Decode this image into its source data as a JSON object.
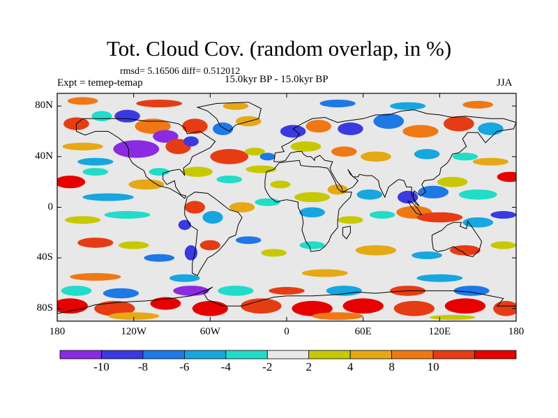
{
  "title": "Tot. Cloud Cov. (random overlap, in %)",
  "stats": "rmsd= 5.16506 diff= 0.512012",
  "experiment": "Expt = temep-temap",
  "period": "15.0kyr BP - 15.0kyr BP",
  "season": "JJA",
  "map": {
    "lon_range": [
      -180,
      180
    ],
    "lat_range": [
      -90,
      90
    ],
    "projection": "cylindrical-equidistant",
    "x_ticks": [
      {
        "lon": -180,
        "label": "180"
      },
      {
        "lon": -120,
        "label": "120W"
      },
      {
        "lon": -60,
        "label": "60W"
      },
      {
        "lon": 0,
        "label": "0"
      },
      {
        "lon": 60,
        "label": "60E"
      },
      {
        "lon": 120,
        "label": "120E"
      },
      {
        "lon": 180,
        "label": "180"
      }
    ],
    "y_ticks": [
      {
        "lat": 80,
        "label": "80N"
      },
      {
        "lat": 40,
        "label": "40N"
      },
      {
        "lat": 0,
        "label": "0"
      },
      {
        "lat": -40,
        "label": "40S"
      },
      {
        "lat": -80,
        "label": "80S"
      }
    ]
  },
  "colorbar": {
    "colors": [
      "#8a2be2",
      "#3a3ae0",
      "#1e78e6",
      "#16a6e0",
      "#20dcc8",
      "#e8e8e8",
      "#c8c800",
      "#e6a814",
      "#f07814",
      "#e63c14",
      "#e60000"
    ],
    "levels": [
      {
        "value": -10,
        "label": "-10"
      },
      {
        "value": -8,
        "label": "-8"
      },
      {
        "value": -6,
        "label": "-6"
      },
      {
        "value": -4,
        "label": "-4"
      },
      {
        "value": -2,
        "label": "-2"
      },
      {
        "value": 2,
        "label": "2"
      },
      {
        "value": 4,
        "label": "4"
      },
      {
        "value": 8,
        "label": "8"
      },
      {
        "value": 10,
        "label": "10"
      }
    ]
  },
  "anomaly_regions": [
    {
      "lon": -160,
      "lat": 84,
      "rx": 12,
      "ry": 3,
      "cls": 8
    },
    {
      "lon": -100,
      "lat": 82,
      "rx": 18,
      "ry": 3,
      "cls": 9
    },
    {
      "lon": -40,
      "lat": 80,
      "rx": 10,
      "ry": 3,
      "cls": 7
    },
    {
      "lon": 40,
      "lat": 82,
      "rx": 14,
      "ry": 3,
      "cls": 2
    },
    {
      "lon": 95,
      "lat": 80,
      "rx": 14,
      "ry": 3,
      "cls": 3
    },
    {
      "lon": 150,
      "lat": 81,
      "rx": 12,
      "ry": 3,
      "cls": 8
    },
    {
      "lon": -165,
      "lat": 66,
      "rx": 10,
      "ry": 5,
      "cls": 9
    },
    {
      "lon": -145,
      "lat": 72,
      "rx": 8,
      "ry": 4,
      "cls": 4
    },
    {
      "lon": -125,
      "lat": 72,
      "rx": 10,
      "ry": 5,
      "cls": 1
    },
    {
      "lon": -105,
      "lat": 64,
      "rx": 14,
      "ry": 6,
      "cls": 8
    },
    {
      "lon": -95,
      "lat": 56,
      "rx": 10,
      "ry": 5,
      "cls": 0
    },
    {
      "lon": -72,
      "lat": 64,
      "rx": 10,
      "ry": 6,
      "cls": 9
    },
    {
      "lon": -50,
      "lat": 62,
      "rx": 8,
      "ry": 5,
      "cls": 2
    },
    {
      "lon": -30,
      "lat": 68,
      "rx": 10,
      "ry": 4,
      "cls": 7
    },
    {
      "lon": -118,
      "lat": 46,
      "rx": 18,
      "ry": 7,
      "cls": 0
    },
    {
      "lon": -85,
      "lat": 48,
      "rx": 10,
      "ry": 6,
      "cls": 9
    },
    {
      "lon": -75,
      "lat": 52,
      "rx": 6,
      "ry": 4,
      "cls": 1
    },
    {
      "lon": -45,
      "lat": 40,
      "rx": 15,
      "ry": 6,
      "cls": 9
    },
    {
      "lon": -25,
      "lat": 44,
      "rx": 8,
      "ry": 3,
      "cls": 6
    },
    {
      "lon": -160,
      "lat": 48,
      "rx": 16,
      "ry": 3,
      "cls": 7
    },
    {
      "lon": -150,
      "lat": 36,
      "rx": 14,
      "ry": 3,
      "cls": 3
    },
    {
      "lon": -170,
      "lat": 20,
      "rx": 12,
      "ry": 5,
      "cls": 10
    },
    {
      "lon": -150,
      "lat": 28,
      "rx": 10,
      "ry": 3,
      "cls": 4
    },
    {
      "lon": -140,
      "lat": 8,
      "rx": 20,
      "ry": 3,
      "cls": 3
    },
    {
      "lon": -110,
      "lat": 18,
      "rx": 14,
      "ry": 4,
      "cls": 7
    },
    {
      "lon": -100,
      "lat": 28,
      "rx": 8,
      "ry": 3,
      "cls": 4
    },
    {
      "lon": -70,
      "lat": 28,
      "rx": 12,
      "ry": 4,
      "cls": 6
    },
    {
      "lon": -45,
      "lat": 22,
      "rx": 10,
      "ry": 3,
      "cls": 4
    },
    {
      "lon": -20,
      "lat": 30,
      "rx": 12,
      "ry": 3,
      "cls": 6
    },
    {
      "lon": 5,
      "lat": 60,
      "rx": 10,
      "ry": 5,
      "cls": 1
    },
    {
      "lon": 25,
      "lat": 64,
      "rx": 10,
      "ry": 5,
      "cls": 8
    },
    {
      "lon": 50,
      "lat": 62,
      "rx": 10,
      "ry": 5,
      "cls": 1
    },
    {
      "lon": 80,
      "lat": 68,
      "rx": 12,
      "ry": 6,
      "cls": 2
    },
    {
      "lon": 105,
      "lat": 60,
      "rx": 14,
      "ry": 5,
      "cls": 8
    },
    {
      "lon": 135,
      "lat": 66,
      "rx": 12,
      "ry": 6,
      "cls": 9
    },
    {
      "lon": 160,
      "lat": 62,
      "rx": 10,
      "ry": 5,
      "cls": 3
    },
    {
      "lon": 15,
      "lat": 48,
      "rx": 12,
      "ry": 4,
      "cls": 6
    },
    {
      "lon": 45,
      "lat": 44,
      "rx": 10,
      "ry": 4,
      "cls": 8
    },
    {
      "lon": -15,
      "lat": 40,
      "rx": 6,
      "ry": 3,
      "cls": 2
    },
    {
      "lon": 70,
      "lat": 40,
      "rx": 12,
      "ry": 4,
      "cls": 7
    },
    {
      "lon": 110,
      "lat": 42,
      "rx": 10,
      "ry": 4,
      "cls": 3
    },
    {
      "lon": 140,
      "lat": 40,
      "rx": 10,
      "ry": 3,
      "cls": 4
    },
    {
      "lon": 160,
      "lat": 36,
      "rx": 14,
      "ry": 3,
      "cls": 7
    },
    {
      "lon": 175,
      "lat": 24,
      "rx": 10,
      "ry": 4,
      "cls": 10
    },
    {
      "lon": 115,
      "lat": 12,
      "rx": 12,
      "ry": 5,
      "cls": 2
    },
    {
      "lon": 130,
      "lat": 20,
      "rx": 12,
      "ry": 4,
      "cls": 6
    },
    {
      "lon": 150,
      "lat": 10,
      "rx": 15,
      "ry": 4,
      "cls": 4
    },
    {
      "lon": 95,
      "lat": 8,
      "rx": 8,
      "ry": 5,
      "cls": 1
    },
    {
      "lon": 65,
      "lat": 10,
      "rx": 10,
      "ry": 4,
      "cls": 3
    },
    {
      "lon": 40,
      "lat": 14,
      "rx": 8,
      "ry": 4,
      "cls": 7
    },
    {
      "lon": 20,
      "lat": 8,
      "rx": 14,
      "ry": 4,
      "cls": 6
    },
    {
      "lon": -5,
      "lat": 18,
      "rx": 8,
      "ry": 3,
      "cls": 6
    },
    {
      "lon": -15,
      "lat": 4,
      "rx": 10,
      "ry": 3,
      "cls": 4
    },
    {
      "lon": -35,
      "lat": 0,
      "rx": 10,
      "ry": 4,
      "cls": 7
    },
    {
      "lon": -72,
      "lat": 0,
      "rx": 8,
      "ry": 5,
      "cls": 9
    },
    {
      "lon": -58,
      "lat": -8,
      "rx": 8,
      "ry": 5,
      "cls": 3
    },
    {
      "lon": -80,
      "lat": -14,
      "rx": 5,
      "ry": 4,
      "cls": 1
    },
    {
      "lon": -125,
      "lat": -6,
      "rx": 18,
      "ry": 3,
      "cls": 4
    },
    {
      "lon": -160,
      "lat": -10,
      "rx": 14,
      "ry": 3,
      "cls": 6
    },
    {
      "lon": 20,
      "lat": -4,
      "rx": 10,
      "ry": 4,
      "cls": 3
    },
    {
      "lon": 50,
      "lat": -10,
      "rx": 10,
      "ry": 3,
      "cls": 6
    },
    {
      "lon": 75,
      "lat": -6,
      "rx": 10,
      "ry": 3,
      "cls": 4
    },
    {
      "lon": 100,
      "lat": -4,
      "rx": 14,
      "ry": 5,
      "cls": 8
    },
    {
      "lon": 120,
      "lat": -8,
      "rx": 18,
      "ry": 4,
      "cls": 9
    },
    {
      "lon": 150,
      "lat": -12,
      "rx": 12,
      "ry": 4,
      "cls": 3
    },
    {
      "lon": 170,
      "lat": -6,
      "rx": 10,
      "ry": 3,
      "cls": 1
    },
    {
      "lon": -150,
      "lat": -28,
      "rx": 14,
      "ry": 4,
      "cls": 9
    },
    {
      "lon": -120,
      "lat": -30,
      "rx": 12,
      "ry": 3,
      "cls": 6
    },
    {
      "lon": -100,
      "lat": -40,
      "rx": 12,
      "ry": 3,
      "cls": 2
    },
    {
      "lon": -75,
      "lat": -36,
      "rx": 5,
      "ry": 6,
      "cls": 1
    },
    {
      "lon": -60,
      "lat": -30,
      "rx": 8,
      "ry": 4,
      "cls": 9
    },
    {
      "lon": -30,
      "lat": -26,
      "rx": 10,
      "ry": 3,
      "cls": 2
    },
    {
      "lon": -10,
      "lat": -36,
      "rx": 10,
      "ry": 3,
      "cls": 6
    },
    {
      "lon": 20,
      "lat": -30,
      "rx": 10,
      "ry": 3,
      "cls": 4
    },
    {
      "lon": 70,
      "lat": -34,
      "rx": 16,
      "ry": 4,
      "cls": 7
    },
    {
      "lon": 110,
      "lat": -38,
      "rx": 12,
      "ry": 3,
      "cls": 3
    },
    {
      "lon": 140,
      "lat": -34,
      "rx": 12,
      "ry": 4,
      "cls": 9
    },
    {
      "lon": 170,
      "lat": -30,
      "rx": 10,
      "ry": 3,
      "cls": 6
    },
    {
      "lon": -150,
      "lat": -55,
      "rx": 20,
      "ry": 3,
      "cls": 8
    },
    {
      "lon": -80,
      "lat": -56,
      "rx": 12,
      "ry": 3,
      "cls": 3
    },
    {
      "lon": 30,
      "lat": -52,
      "rx": 18,
      "ry": 3,
      "cls": 7
    },
    {
      "lon": 120,
      "lat": -56,
      "rx": 18,
      "ry": 3,
      "cls": 3
    },
    {
      "lon": -165,
      "lat": -66,
      "rx": 12,
      "ry": 4,
      "cls": 4
    },
    {
      "lon": -130,
      "lat": -68,
      "rx": 14,
      "ry": 4,
      "cls": 2
    },
    {
      "lon": -75,
      "lat": -66,
      "rx": 14,
      "ry": 4,
      "cls": 0
    },
    {
      "lon": -40,
      "lat": -66,
      "rx": 14,
      "ry": 4,
      "cls": 4
    },
    {
      "lon": 0,
      "lat": -66,
      "rx": 14,
      "ry": 3,
      "cls": 9
    },
    {
      "lon": 45,
      "lat": -66,
      "rx": 14,
      "ry": 4,
      "cls": 3
    },
    {
      "lon": 95,
      "lat": -66,
      "rx": 14,
      "ry": 4,
      "cls": 9
    },
    {
      "lon": 145,
      "lat": -66,
      "rx": 14,
      "ry": 4,
      "cls": 2
    },
    {
      "lon": -170,
      "lat": -78,
      "rx": 14,
      "ry": 6,
      "cls": 10
    },
    {
      "lon": -135,
      "lat": -80,
      "rx": 16,
      "ry": 6,
      "cls": 9
    },
    {
      "lon": -95,
      "lat": -76,
      "rx": 12,
      "ry": 5,
      "cls": 10
    },
    {
      "lon": -60,
      "lat": -80,
      "rx": 14,
      "ry": 6,
      "cls": 10
    },
    {
      "lon": -20,
      "lat": -78,
      "rx": 16,
      "ry": 6,
      "cls": 9
    },
    {
      "lon": 20,
      "lat": -80,
      "rx": 16,
      "ry": 6,
      "cls": 10
    },
    {
      "lon": 60,
      "lat": -78,
      "rx": 16,
      "ry": 6,
      "cls": 10
    },
    {
      "lon": 100,
      "lat": -80,
      "rx": 16,
      "ry": 6,
      "cls": 9
    },
    {
      "lon": 140,
      "lat": -78,
      "rx": 16,
      "ry": 6,
      "cls": 10
    },
    {
      "lon": 172,
      "lat": -80,
      "rx": 10,
      "ry": 6,
      "cls": 9
    },
    {
      "lon": -120,
      "lat": -86,
      "rx": 20,
      "ry": 3,
      "cls": 7
    },
    {
      "lon": 40,
      "lat": -86,
      "rx": 20,
      "ry": 3,
      "cls": 8
    },
    {
      "lon": 130,
      "lat": -87,
      "rx": 18,
      "ry": 2,
      "cls": 6
    }
  ]
}
